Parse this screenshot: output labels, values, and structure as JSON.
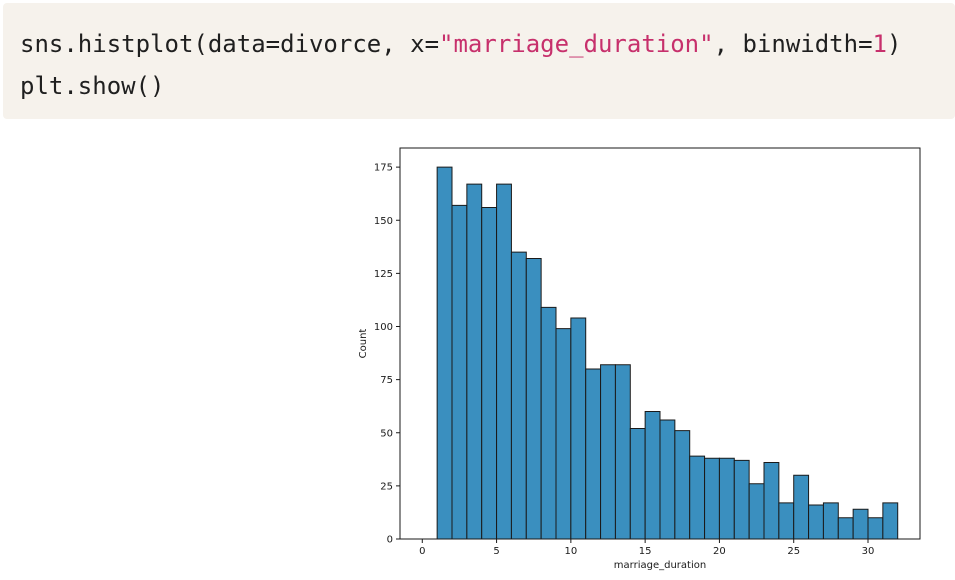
{
  "code": {
    "line1": {
      "prefix": "sns.histplot(data=divorce, x=",
      "string": "\"marriage_duration\"",
      "middle": ", binwidth=",
      "number": "1",
      "suffix": ")"
    },
    "line2": "plt.show()"
  },
  "chart_data": {
    "type": "bar",
    "title": "",
    "xlabel": "marriage_duration",
    "ylabel": "Count",
    "bin_width": 1,
    "bin_edges_start": 1,
    "x": [
      1,
      2,
      3,
      4,
      5,
      6,
      7,
      8,
      9,
      10,
      11,
      12,
      13,
      14,
      15,
      16,
      17,
      18,
      19,
      20,
      21,
      22,
      23,
      24,
      25,
      26,
      27,
      28,
      29,
      30,
      31
    ],
    "values": [
      175,
      157,
      167,
      156,
      167,
      135,
      132,
      109,
      99,
      104,
      80,
      82,
      82,
      52,
      60,
      56,
      51,
      39,
      38,
      38,
      37,
      26,
      36,
      17,
      30,
      16,
      17,
      10,
      14,
      10,
      17
    ],
    "xlim": [
      -1.5,
      33.5
    ],
    "ylim": [
      0,
      184
    ],
    "xticks": [
      0,
      5,
      10,
      15,
      20,
      25,
      30
    ],
    "yticks": [
      0,
      25,
      50,
      75,
      100,
      125,
      150,
      175
    ],
    "bar_color": "#3a8fbf",
    "edge_color": "#1a1a1a",
    "grid": false,
    "legend": "none"
  }
}
